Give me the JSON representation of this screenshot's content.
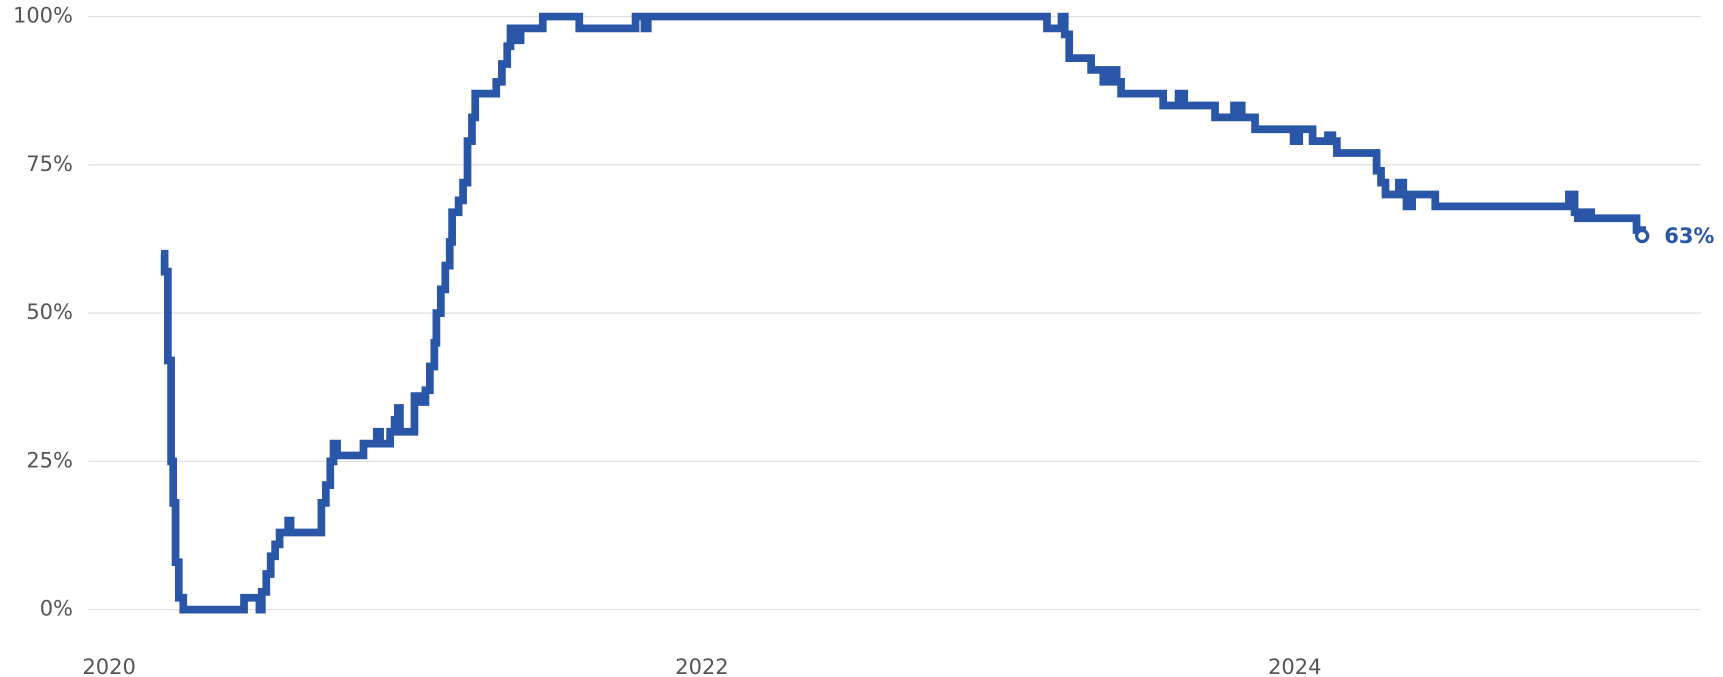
{
  "chart_data": {
    "type": "line",
    "step": "after",
    "x": [
      2020.175,
      2020.187,
      2020.198,
      2020.209,
      2020.216,
      2020.224,
      2020.235,
      2020.25,
      2020.448,
      2020.455,
      2020.496,
      2020.507,
      2020.515,
      2020.53,
      2020.545,
      2020.56,
      2020.575,
      2020.604,
      2020.612,
      2020.709,
      2020.716,
      2020.731,
      2020.746,
      2020.757,
      2020.769,
      2020.851,
      2020.858,
      2020.896,
      2020.903,
      2020.914,
      2020.94,
      2020.948,
      2020.963,
      2020.974,
      2020.981,
      2021.019,
      2021.03,
      2021.052,
      2021.067,
      2021.082,
      2021.097,
      2021.104,
      2021.119,
      2021.134,
      2021.149,
      2021.157,
      2021.179,
      2021.194,
      2021.209,
      2021.224,
      2021.235,
      2021.291,
      2021.306,
      2021.325,
      2021.343,
      2021.354,
      2021.373,
      2021.388,
      2021.451,
      2021.463,
      2021.575,
      2021.586,
      2021.765,
      2021.776,
      2021.806,
      2021.817,
      2023.153,
      2023.164,
      2023.201,
      2023.213,
      2023.224,
      2023.239,
      2023.306,
      2023.313,
      2023.343,
      2023.354,
      2023.377,
      2023.399,
      2023.414,
      2023.545,
      2023.556,
      2023.597,
      2023.608,
      2023.627,
      2023.72,
      2023.731,
      2023.784,
      2023.795,
      2023.821,
      2023.854,
      2023.866,
      2023.985,
      2023.996,
      2024.015,
      2024.052,
      2024.06,
      2024.101,
      2024.112,
      2024.127,
      2024.142,
      2024.261,
      2024.276,
      2024.291,
      2024.306,
      2024.34,
      2024.351,
      2024.366,
      2024.377,
      2024.396,
      2024.463,
      2024.474,
      2024.914,
      2024.925,
      2024.944,
      2024.955,
      2024.978,
      2025.0,
      2025.142,
      2025.153,
      2025.172
    ],
    "series": [
      {
        "color": "#2a56a8",
        "values": [
          60,
          57,
          42,
          25,
          18,
          8,
          2,
          0,
          0,
          2,
          2,
          0,
          3,
          6,
          9,
          11,
          13,
          15,
          13,
          13,
          18,
          21,
          25,
          28,
          26,
          26,
          28,
          28,
          30,
          28,
          28,
          30,
          32,
          34,
          30,
          30,
          36,
          35,
          37,
          41,
          45,
          50,
          54,
          58,
          62,
          67,
          69,
          72,
          79,
          83,
          87,
          87,
          89,
          92,
          95,
          98,
          96,
          98,
          98,
          100,
          100,
          98,
          98,
          100,
          98,
          100,
          100,
          98,
          98,
          100,
          97,
          93,
          93,
          91,
          91,
          89,
          91,
          89,
          87,
          87,
          85,
          85,
          87,
          85,
          85,
          83,
          83,
          85,
          83,
          83,
          81,
          81,
          79,
          81,
          81,
          79,
          79,
          80,
          79,
          77,
          77,
          74,
          72,
          70,
          70,
          72,
          70,
          68,
          70,
          70,
          68,
          68,
          70,
          67,
          66,
          67,
          66,
          66,
          64,
          63
        ]
      }
    ],
    "annotations": [
      {
        "x": 2025.172,
        "y": 63,
        "text": "63%"
      }
    ],
    "xlim": [
      2019.93,
      2025.37
    ],
    "xticks": [
      2020,
      2022,
      2024
    ],
    "ylim": [
      0,
      100
    ],
    "yticks": [
      {
        "value": 0,
        "label": "0%"
      },
      {
        "value": 25,
        "label": "25%"
      },
      {
        "value": 50,
        "label": "50%"
      },
      {
        "value": 75,
        "label": "75%"
      },
      {
        "value": 100,
        "label": "100%"
      }
    ],
    "grid": true
  }
}
